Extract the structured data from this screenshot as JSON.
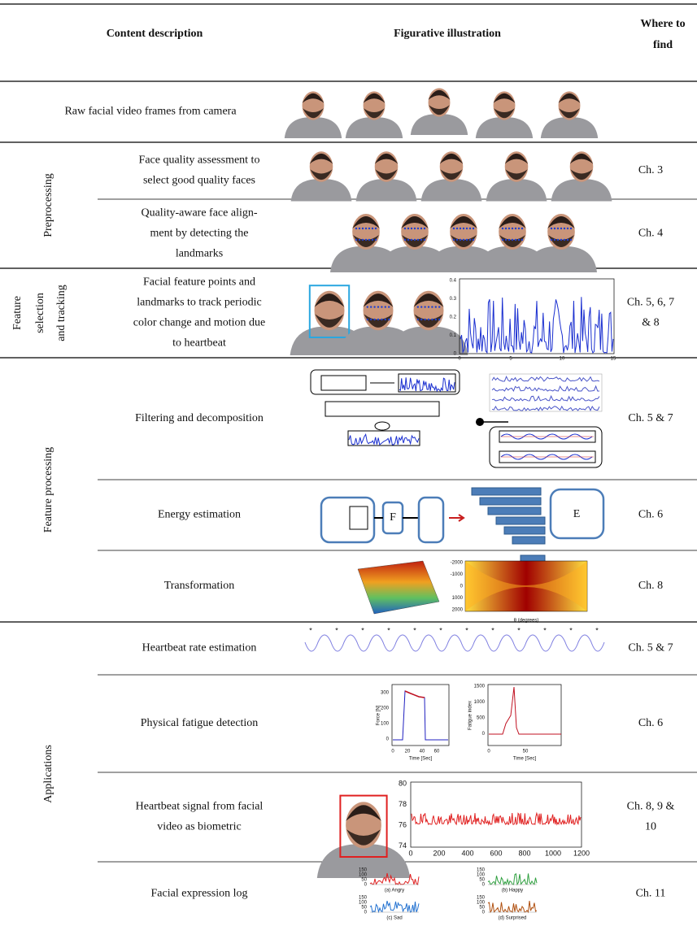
{
  "header": {
    "content": "Content description",
    "figure": "Figurative illustration",
    "where": [
      "Where to",
      "find"
    ]
  },
  "rows": [
    {
      "desc": [
        "Raw facial video frames from camera"
      ]
    },
    {
      "desc": [
        "Face quality assessment to",
        "select good quality faces"
      ],
      "where": [
        "Ch. 3"
      ]
    },
    {
      "desc": [
        "Quality-aware face align-",
        "ment by detecting the",
        "landmarks"
      ],
      "where": [
        "Ch. 4"
      ]
    },
    {
      "desc": [
        "Facial feature points and",
        "landmarks to track periodic",
        "color change and motion due",
        "to heartbeat"
      ],
      "where": [
        "Ch. 5, 6, 7",
        "& 8"
      ]
    },
    {
      "desc": [
        "Filtering and decomposition"
      ],
      "where": [
        "Ch. 5 & 7"
      ]
    },
    {
      "desc": [
        "Energy estimation"
      ],
      "where": [
        "Ch. 6"
      ]
    },
    {
      "desc": [
        "Transformation"
      ],
      "where": [
        "Ch. 8"
      ]
    },
    {
      "desc": [
        "Heartbeat rate estimation"
      ],
      "where": [
        "Ch. 5 & 7"
      ]
    },
    {
      "desc": [
        "Physical fatigue detection"
      ],
      "where": [
        "Ch. 6"
      ]
    },
    {
      "desc": [
        "Heartbeat signal from facial",
        "video as biometric"
      ],
      "where": [
        "Ch. 8, 9 &",
        "10"
      ]
    },
    {
      "desc": [
        "Facial expression log"
      ],
      "where": [
        "Ch. 11"
      ]
    }
  ],
  "groups": [
    {
      "label": [
        "Preprocessing"
      ]
    },
    {
      "label": [
        "Feature",
        "selection",
        "and tracking"
      ]
    },
    {
      "label": [
        "Feature processing"
      ]
    },
    {
      "label": [
        "Applications"
      ]
    }
  ],
  "figures": {
    "feature_plot": {
      "yticks": [
        "0.4",
        "0.3",
        "0.2",
        "0.1",
        "0"
      ],
      "xticks": [
        "0",
        "5",
        "10",
        "15"
      ]
    },
    "energy": {
      "blocks": [
        "F",
        "E"
      ]
    },
    "radon": {
      "yticks": [
        "-2000",
        "-1000",
        "0",
        "1000",
        "2000"
      ],
      "xlabel": "θ (degrees)"
    },
    "force": {
      "yticks": [
        "300",
        "200",
        "100",
        "0"
      ],
      "xticks": [
        "0",
        "20",
        "40",
        "60"
      ],
      "ylabel": "Force [N]",
      "xlabel": "Time [Sec]"
    },
    "fatigue": {
      "yticks": [
        "1500",
        "1000",
        "500",
        "0"
      ],
      "xticks": [
        "0",
        "50"
      ],
      "ylabel": "Fatigue index",
      "xlabel": "Time [Sec]"
    },
    "biometric": {
      "yticks": [
        "80",
        "78",
        "76",
        "74"
      ],
      "xticks": [
        "0",
        "200",
        "400",
        "600",
        "800",
        "1000",
        "1200"
      ]
    },
    "expression": {
      "captions": [
        "(a) Angry",
        "(b) Happy",
        "(c) Sad",
        "(d) Surprised"
      ],
      "yticks": [
        "150",
        "100",
        "50",
        "0"
      ]
    }
  }
}
